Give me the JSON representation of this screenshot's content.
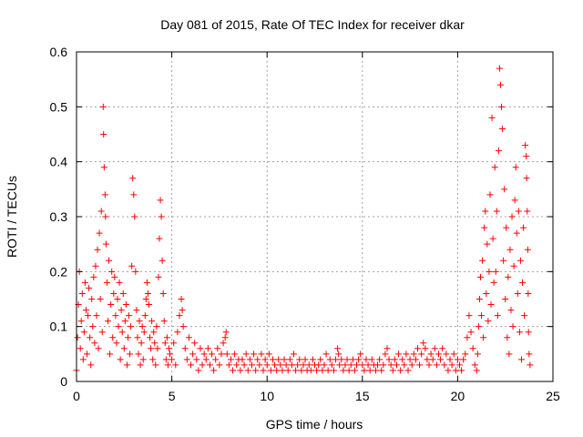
{
  "chart_data": {
    "type": "scatter",
    "title": "Day 081 of 2015, Rate Of TEC Index for receiver dkar",
    "xlabel": "GPS time / hours",
    "ylabel": "ROTI / TECUs",
    "xlim": [
      0,
      25
    ],
    "ylim": [
      0,
      0.6
    ],
    "xticks": [
      "0",
      "5",
      "10",
      "15",
      "20",
      "25"
    ],
    "yticks": [
      "0",
      "0.1",
      "0.2",
      "0.3",
      "0.4",
      "0.5",
      "0.6"
    ],
    "grid": true,
    "marker": "+",
    "color": "#ff0000",
    "series": [
      {
        "points": [
          [
            0.0,
            0.02
          ],
          [
            0.05,
            0.08
          ],
          [
            0.1,
            0.14
          ],
          [
            0.15,
            0.2
          ],
          [
            0.2,
            0.06
          ],
          [
            0.25,
            0.11
          ],
          [
            0.3,
            0.16
          ],
          [
            0.35,
            0.04
          ],
          [
            0.4,
            0.09
          ],
          [
            0.45,
            0.18
          ],
          [
            0.5,
            0.13
          ],
          [
            0.55,
            0.05
          ],
          [
            0.6,
            0.12
          ],
          [
            0.65,
            0.17
          ],
          [
            0.7,
            0.08
          ],
          [
            0.75,
            0.03
          ],
          [
            0.8,
            0.15
          ],
          [
            0.85,
            0.1
          ],
          [
            0.9,
            0.19
          ],
          [
            0.95,
            0.07
          ],
          [
            1.0,
            0.21
          ],
          [
            1.05,
            0.12
          ],
          [
            1.1,
            0.24
          ],
          [
            1.15,
            0.06
          ],
          [
            1.2,
            0.27
          ],
          [
            1.25,
            0.15
          ],
          [
            1.3,
            0.31
          ],
          [
            1.35,
            0.09
          ],
          [
            1.4,
            0.5
          ],
          [
            1.42,
            0.45
          ],
          [
            1.45,
            0.39
          ],
          [
            1.5,
            0.34
          ],
          [
            1.52,
            0.3
          ],
          [
            1.55,
            0.25
          ],
          [
            1.6,
            0.18
          ],
          [
            1.65,
            0.11
          ],
          [
            1.7,
            0.22
          ],
          [
            1.75,
            0.05
          ],
          [
            1.8,
            0.14
          ],
          [
            1.85,
            0.2
          ],
          [
            1.9,
            0.08
          ],
          [
            1.95,
            0.16
          ],
          [
            2.0,
            0.19
          ],
          [
            2.05,
            0.12
          ],
          [
            2.1,
            0.07
          ],
          [
            2.15,
            0.15
          ],
          [
            2.2,
            0.1
          ],
          [
            2.25,
            0.18
          ],
          [
            2.3,
            0.04
          ],
          [
            2.35,
            0.13
          ],
          [
            2.4,
            0.09
          ],
          [
            2.45,
            0.16
          ],
          [
            2.5,
            0.06
          ],
          [
            2.55,
            0.11
          ],
          [
            2.6,
            0.14
          ],
          [
            2.65,
            0.03
          ],
          [
            2.7,
            0.08
          ],
          [
            2.75,
            0.12
          ],
          [
            2.8,
            0.05
          ],
          [
            2.85,
            0.1
          ],
          [
            2.9,
            0.21
          ],
          [
            2.95,
            0.37
          ],
          [
            3.0,
            0.34
          ],
          [
            3.05,
            0.3
          ],
          [
            3.1,
            0.2
          ],
          [
            3.15,
            0.13
          ],
          [
            3.2,
            0.08
          ],
          [
            3.25,
            0.05
          ],
          [
            3.3,
            0.11
          ],
          [
            3.35,
            0.03
          ],
          [
            3.4,
            0.07
          ],
          [
            3.45,
            0.1
          ],
          [
            3.5,
            0.04
          ],
          [
            3.55,
            0.09
          ],
          [
            3.6,
            0.12
          ],
          [
            3.65,
            0.15
          ],
          [
            3.7,
            0.18
          ],
          [
            3.75,
            0.16
          ],
          [
            3.8,
            0.14
          ],
          [
            3.85,
            0.08
          ],
          [
            3.9,
            0.06
          ],
          [
            3.95,
            0.11
          ],
          [
            4.0,
            0.04
          ],
          [
            4.05,
            0.09
          ],
          [
            4.1,
            0.07
          ],
          [
            4.15,
            0.03
          ],
          [
            4.2,
            0.1
          ],
          [
            4.25,
            0.06
          ],
          [
            4.3,
            0.19
          ],
          [
            4.35,
            0.26
          ],
          [
            4.4,
            0.33
          ],
          [
            4.45,
            0.3
          ],
          [
            4.5,
            0.22
          ],
          [
            4.55,
            0.16
          ],
          [
            4.6,
            0.11
          ],
          [
            4.65,
            0.07
          ],
          [
            4.7,
            0.04
          ],
          [
            4.75,
            0.08
          ],
          [
            4.8,
            0.03
          ],
          [
            4.85,
            0.06
          ],
          [
            4.9,
            0.05
          ],
          [
            5.0,
            0.04
          ],
          [
            5.1,
            0.07
          ],
          [
            5.2,
            0.03
          ],
          [
            5.3,
            0.09
          ],
          [
            5.4,
            0.12
          ],
          [
            5.5,
            0.15
          ],
          [
            5.55,
            0.13
          ],
          [
            5.6,
            0.1
          ],
          [
            5.7,
            0.06
          ],
          [
            5.8,
            0.04
          ],
          [
            5.9,
            0.08
          ],
          [
            6.0,
            0.03
          ],
          [
            6.1,
            0.05
          ],
          [
            6.2,
            0.07
          ],
          [
            6.3,
            0.04
          ],
          [
            6.4,
            0.02
          ],
          [
            6.5,
            0.06
          ],
          [
            6.6,
            0.03
          ],
          [
            6.7,
            0.05
          ],
          [
            6.8,
            0.04
          ],
          [
            6.9,
            0.06
          ],
          [
            7.0,
            0.03
          ],
          [
            7.1,
            0.05
          ],
          [
            7.2,
            0.02
          ],
          [
            7.3,
            0.04
          ],
          [
            7.4,
            0.06
          ],
          [
            7.5,
            0.03
          ],
          [
            7.6,
            0.05
          ],
          [
            7.7,
            0.07
          ],
          [
            7.8,
            0.08
          ],
          [
            7.85,
            0.09
          ],
          [
            7.9,
            0.05
          ],
          [
            8.0,
            0.03
          ],
          [
            8.1,
            0.04
          ],
          [
            8.2,
            0.02
          ],
          [
            8.3,
            0.05
          ],
          [
            8.4,
            0.03
          ],
          [
            8.5,
            0.04
          ],
          [
            8.6,
            0.02
          ],
          [
            8.7,
            0.04
          ],
          [
            8.8,
            0.03
          ],
          [
            8.9,
            0.05
          ],
          [
            9.0,
            0.02
          ],
          [
            9.1,
            0.04
          ],
          [
            9.2,
            0.03
          ],
          [
            9.3,
            0.05
          ],
          [
            9.4,
            0.02
          ],
          [
            9.5,
            0.04
          ],
          [
            9.6,
            0.03
          ],
          [
            9.7,
            0.05
          ],
          [
            9.8,
            0.02
          ],
          [
            9.9,
            0.04
          ],
          [
            10.0,
            0.03
          ],
          [
            10.1,
            0.05
          ],
          [
            10.2,
            0.02
          ],
          [
            10.3,
            0.04
          ],
          [
            10.4,
            0.03
          ],
          [
            10.5,
            0.02
          ],
          [
            10.6,
            0.04
          ],
          [
            10.7,
            0.03
          ],
          [
            10.8,
            0.02
          ],
          [
            10.9,
            0.04
          ],
          [
            11.0,
            0.03
          ],
          [
            11.1,
            0.02
          ],
          [
            11.2,
            0.04
          ],
          [
            11.3,
            0.03
          ],
          [
            11.4,
            0.05
          ],
          [
            11.5,
            0.02
          ],
          [
            11.6,
            0.03
          ],
          [
            11.7,
            0.04
          ],
          [
            11.8,
            0.02
          ],
          [
            11.9,
            0.03
          ],
          [
            12.0,
            0.04
          ],
          [
            12.1,
            0.02
          ],
          [
            12.2,
            0.03
          ],
          [
            12.3,
            0.02
          ],
          [
            12.4,
            0.04
          ],
          [
            12.5,
            0.03
          ],
          [
            12.6,
            0.02
          ],
          [
            12.7,
            0.03
          ],
          [
            12.8,
            0.04
          ],
          [
            12.9,
            0.02
          ],
          [
            13.0,
            0.03
          ],
          [
            13.1,
            0.05
          ],
          [
            13.2,
            0.02
          ],
          [
            13.3,
            0.04
          ],
          [
            13.4,
            0.03
          ],
          [
            13.5,
            0.02
          ],
          [
            13.6,
            0.04
          ],
          [
            13.7,
            0.06
          ],
          [
            13.75,
            0.05
          ],
          [
            13.8,
            0.03
          ],
          [
            13.9,
            0.04
          ],
          [
            14.0,
            0.02
          ],
          [
            14.1,
            0.03
          ],
          [
            14.2,
            0.04
          ],
          [
            14.3,
            0.02
          ],
          [
            14.4,
            0.03
          ],
          [
            14.5,
            0.04
          ],
          [
            14.6,
            0.02
          ],
          [
            14.7,
            0.03
          ],
          [
            14.8,
            0.04
          ],
          [
            14.9,
            0.05
          ],
          [
            15.0,
            0.03
          ],
          [
            15.1,
            0.02
          ],
          [
            15.2,
            0.04
          ],
          [
            15.3,
            0.03
          ],
          [
            15.4,
            0.02
          ],
          [
            15.5,
            0.04
          ],
          [
            15.6,
            0.03
          ],
          [
            15.7,
            0.02
          ],
          [
            15.8,
            0.03
          ],
          [
            15.9,
            0.04
          ],
          [
            16.0,
            0.02
          ],
          [
            16.1,
            0.03
          ],
          [
            16.2,
            0.05
          ],
          [
            16.3,
            0.06
          ],
          [
            16.4,
            0.04
          ],
          [
            16.5,
            0.03
          ],
          [
            16.6,
            0.02
          ],
          [
            16.7,
            0.04
          ],
          [
            16.8,
            0.03
          ],
          [
            16.9,
            0.05
          ],
          [
            17.0,
            0.02
          ],
          [
            17.1,
            0.04
          ],
          [
            17.2,
            0.03
          ],
          [
            17.3,
            0.05
          ],
          [
            17.4,
            0.02
          ],
          [
            17.5,
            0.04
          ],
          [
            17.6,
            0.03
          ],
          [
            17.7,
            0.05
          ],
          [
            17.8,
            0.04
          ],
          [
            17.9,
            0.06
          ],
          [
            18.0,
            0.03
          ],
          [
            18.1,
            0.05
          ],
          [
            18.2,
            0.07
          ],
          [
            18.3,
            0.06
          ],
          [
            18.4,
            0.04
          ],
          [
            18.5,
            0.03
          ],
          [
            18.6,
            0.05
          ],
          [
            18.7,
            0.04
          ],
          [
            18.8,
            0.06
          ],
          [
            18.9,
            0.03
          ],
          [
            19.0,
            0.05
          ],
          [
            19.1,
            0.04
          ],
          [
            19.2,
            0.06
          ],
          [
            19.3,
            0.03
          ],
          [
            19.4,
            0.05
          ],
          [
            19.5,
            0.02
          ],
          [
            19.6,
            0.04
          ],
          [
            19.7,
            0.03
          ],
          [
            19.8,
            0.05
          ],
          [
            19.9,
            0.02
          ],
          [
            20.0,
            0.04
          ],
          [
            20.1,
            0.03
          ],
          [
            20.2,
            0.02
          ],
          [
            20.3,
            0.04
          ],
          [
            20.4,
            0.05
          ],
          [
            20.5,
            0.08
          ],
          [
            20.6,
            0.12
          ],
          [
            20.7,
            0.09
          ],
          [
            20.8,
            0.06
          ],
          [
            20.9,
            0.03
          ],
          [
            21.0,
            0.02
          ],
          [
            21.05,
            0.05
          ],
          [
            21.1,
            0.1
          ],
          [
            21.15,
            0.15
          ],
          [
            21.2,
            0.19
          ],
          [
            21.25,
            0.12
          ],
          [
            21.3,
            0.22
          ],
          [
            21.35,
            0.08
          ],
          [
            21.4,
            0.28
          ],
          [
            21.45,
            0.31
          ],
          [
            21.5,
            0.16
          ],
          [
            21.55,
            0.25
          ],
          [
            21.6,
            0.11
          ],
          [
            21.65,
            0.2
          ],
          [
            21.7,
            0.34
          ],
          [
            21.75,
            0.14
          ],
          [
            21.8,
            0.48
          ],
          [
            21.85,
            0.26
          ],
          [
            21.9,
            0.18
          ],
          [
            21.95,
            0.39
          ],
          [
            22.0,
            0.2
          ],
          [
            22.05,
            0.31
          ],
          [
            22.1,
            0.12
          ],
          [
            22.15,
            0.42
          ],
          [
            22.2,
            0.57
          ],
          [
            22.25,
            0.54
          ],
          [
            22.3,
            0.5
          ],
          [
            22.35,
            0.46
          ],
          [
            22.4,
            0.22
          ],
          [
            22.45,
            0.35
          ],
          [
            22.5,
            0.15
          ],
          [
            22.55,
            0.28
          ],
          [
            22.6,
            0.08
          ],
          [
            22.65,
            0.19
          ],
          [
            22.7,
            0.05
          ],
          [
            22.75,
            0.24
          ],
          [
            22.8,
            0.13
          ],
          [
            22.85,
            0.3
          ],
          [
            22.9,
            0.1
          ],
          [
            22.95,
            0.21
          ],
          [
            23.0,
            0.33
          ],
          [
            23.05,
            0.39
          ],
          [
            23.1,
            0.27
          ],
          [
            23.15,
            0.16
          ],
          [
            23.2,
            0.31
          ],
          [
            23.25,
            0.09
          ],
          [
            23.3,
            0.22
          ],
          [
            23.35,
            0.04
          ],
          [
            23.4,
            0.18
          ],
          [
            23.45,
            0.28
          ],
          [
            23.5,
            0.12
          ],
          [
            23.55,
            0.43
          ],
          [
            23.6,
            0.41
          ],
          [
            23.62,
            0.37
          ],
          [
            23.65,
            0.31
          ],
          [
            23.68,
            0.24
          ],
          [
            23.7,
            0.16
          ],
          [
            23.72,
            0.09
          ],
          [
            23.75,
            0.05
          ],
          [
            23.8,
            0.03
          ]
        ]
      }
    ]
  }
}
